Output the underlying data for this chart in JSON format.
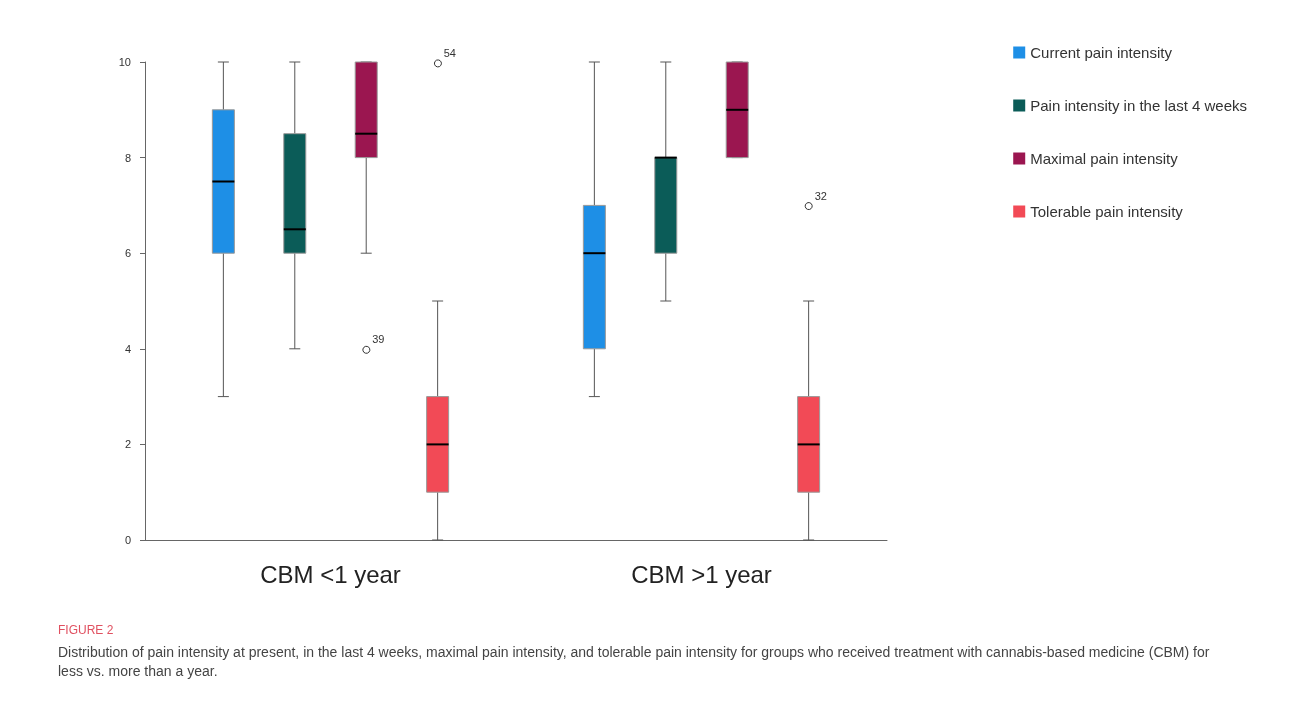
{
  "chart_data": {
    "type": "box",
    "categories": [
      "CBM <1 year",
      "CBM >1 year"
    ],
    "series": [
      {
        "name": "Current pain intensity",
        "color": "#1e8fe6",
        "boxes": [
          {
            "low": 3,
            "q1": 6,
            "median": 7.5,
            "q3": 9,
            "high": 10
          },
          {
            "low": 3,
            "q1": 4,
            "median": 6,
            "q3": 7,
            "high": 10
          }
        ]
      },
      {
        "name": "Pain intensity in the last 4 weeks",
        "color": "#0b5c58",
        "boxes": [
          {
            "low": 4,
            "q1": 6,
            "median": 6.5,
            "q3": 8.5,
            "high": 10
          },
          {
            "low": 5,
            "q1": 6,
            "median": 8,
            "q3": 8,
            "high": 10
          }
        ]
      },
      {
        "name": "Maximal pain intensity",
        "color": "#9b1650",
        "boxes": [
          {
            "low": 6,
            "q1": 8,
            "median": 8.5,
            "q3": 10,
            "high": 10,
            "outliers": [
              4
            ]
          },
          {
            "low": 8,
            "q1": 8,
            "median": 9,
            "q3": 10,
            "high": 10
          }
        ]
      },
      {
        "name": "Tolerable pain intensity",
        "color": "#f24a56",
        "boxes": [
          {
            "low": 0,
            "q1": 1,
            "median": 2,
            "q3": 3,
            "high": 5,
            "outliers": [
              10
            ]
          },
          {
            "low": 0,
            "q1": 1,
            "median": 2,
            "q3": 3,
            "high": 5,
            "outliers": [
              7
            ]
          }
        ]
      }
    ],
    "ylim": [
      0,
      10
    ],
    "yticks": [
      0,
      2,
      4,
      6,
      8,
      10
    ],
    "grid": false,
    "legend": "right",
    "annotations": [
      "39",
      "54",
      "32",
      "FIGURE 2",
      "Distribution of pain intensity at present, in the last 4 weeks, maximal pain intensity, and tolerable pain intensity for groups who received treatment with cannabis-based medicine (CBM) for less vs. more than a year."
    ]
  }
}
